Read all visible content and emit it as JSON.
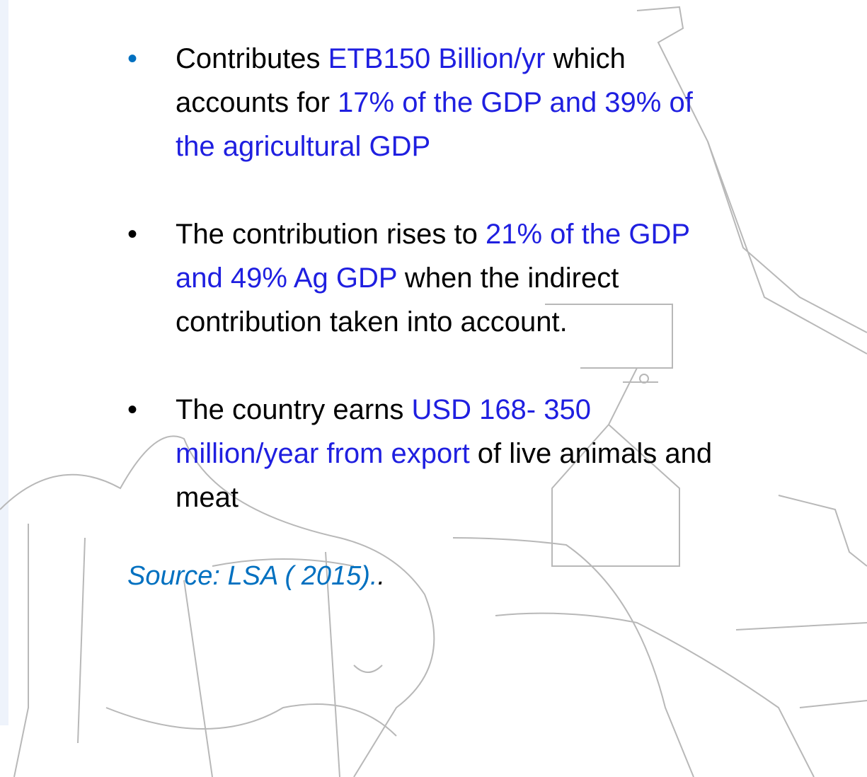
{
  "slide": {
    "bullets": [
      {
        "bullet_color": "#0070c0",
        "parts": [
          {
            "text": " Contributes ",
            "color": "#000000"
          },
          {
            "text": "ETB150 Billion/yr",
            "color": "#1f1fe0"
          },
          {
            "text": " which accounts for ",
            "color": "#000000"
          },
          {
            "text": "17% of the GDP and 39% of the agricultural GDP",
            "color": "#1f1fe0"
          }
        ]
      },
      {
        "bullet_color": "#000000",
        "parts": [
          {
            "text": "The contribution rises to ",
            "color": "#000000"
          },
          {
            "text": "21% of the GDP and 49% Ag GDP",
            "color": "#1f1fe0"
          },
          {
            "text": " when the indirect contribution taken into account.",
            "color": "#000000"
          }
        ]
      },
      {
        "bullet_color": "#000000",
        "parts": [
          {
            "text": "The country earns ",
            "color": "#000000"
          },
          {
            "text": "USD 168- 350 million/year from export",
            "color": "#1f1fe0"
          },
          {
            "text": " of live animals and meat",
            "color": "#000000"
          }
        ]
      }
    ],
    "source": [
      {
        "text": "Source: LSA ( 2015).",
        "color": "#0070c0"
      },
      {
        "text": ".",
        "color": "#000000"
      }
    ]
  }
}
